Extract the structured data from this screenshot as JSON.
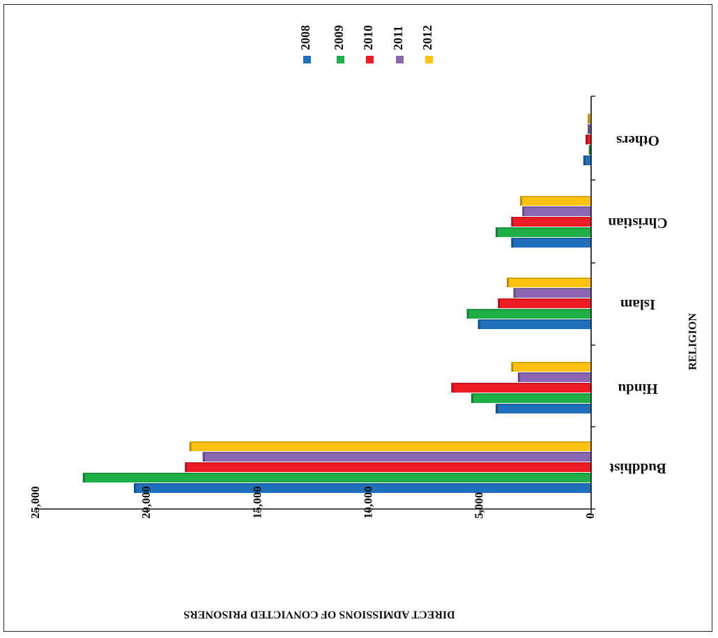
{
  "chart_data": {
    "type": "bar",
    "orientation": "horizontal",
    "rotation_deg": 180,
    "title": "",
    "xlabel": "RELIGION",
    "ylabel": "DIRECT ADMISSIONS OF CONVICTED PRISONERS",
    "categories": [
      "Buddhist",
      "Hindu",
      "Islam",
      "Christian",
      "Others"
    ],
    "ylim": [
      0,
      25000
    ],
    "ticks": [
      0,
      5000,
      10000,
      15000,
      20000,
      25000
    ],
    "tick_labels": [
      "0",
      "5,000",
      "10,000",
      "15,000",
      "20,000",
      "25,000"
    ],
    "legend_position": "top",
    "series": [
      {
        "name": "2008",
        "color": "#1f6fba",
        "values": [
          20600,
          4300,
          5100,
          3600,
          350
        ]
      },
      {
        "name": "2009",
        "color": "#1fae48",
        "values": [
          22900,
          5400,
          5600,
          4300,
          100
        ]
      },
      {
        "name": "2010",
        "color": "#ee1c24",
        "values": [
          18300,
          6300,
          4200,
          3600,
          250
        ]
      },
      {
        "name": "2011",
        "color": "#8a67b0",
        "values": [
          17500,
          3300,
          3500,
          3100,
          150
        ]
      },
      {
        "name": "2012",
        "color": "#ffc20e",
        "values": [
          18100,
          3600,
          3800,
          3200,
          150
        ]
      }
    ]
  }
}
